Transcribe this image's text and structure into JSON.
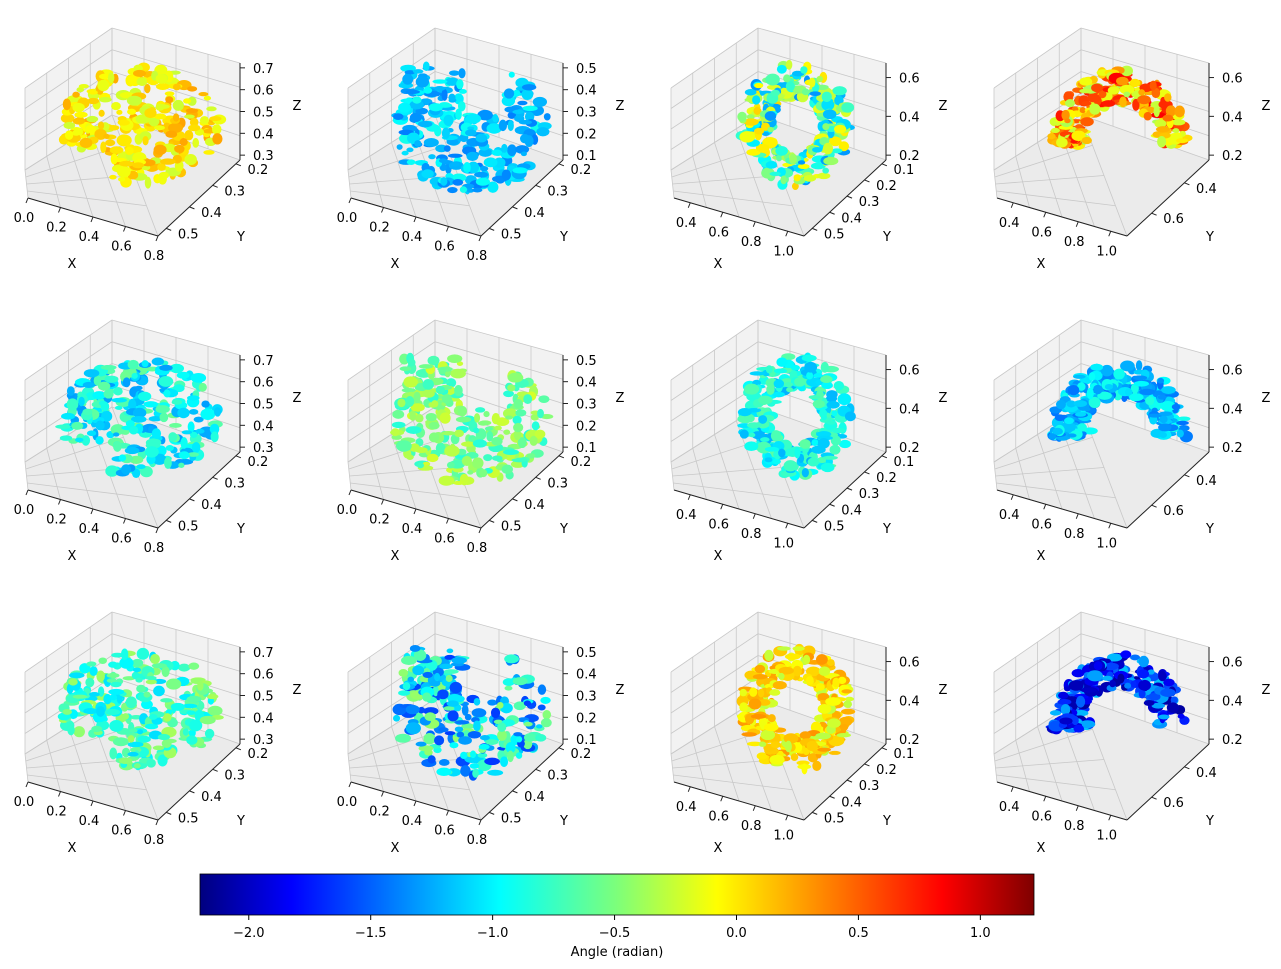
{
  "chart_data": {
    "type": "scatter3d-grid",
    "rows": 3,
    "cols": 4,
    "axis_labels": {
      "x": "X",
      "y": "Y",
      "z": "Z"
    },
    "column_axes": [
      {
        "x_ticks": [
          "0.0",
          "0.2",
          "0.4",
          "0.6",
          "0.8"
        ],
        "y_ticks": [
          "0.2",
          "0.3",
          "0.4",
          "0.5"
        ],
        "z_ticks": [
          "0.3",
          "0.4",
          "0.5",
          "0.6",
          "0.7"
        ]
      },
      {
        "x_ticks": [
          "0.0",
          "0.2",
          "0.4",
          "0.6",
          "0.8"
        ],
        "y_ticks": [
          "0.2",
          "0.3",
          "0.4",
          "0.5"
        ],
        "z_ticks": [
          "0.1",
          "0.2",
          "0.3",
          "0.4",
          "0.5"
        ]
      },
      {
        "x_ticks": [
          "0.4",
          "0.6",
          "0.8",
          "1.0"
        ],
        "y_ticks": [
          "0.1",
          "0.2",
          "0.3",
          "0.4",
          "0.5"
        ],
        "z_ticks": [
          "0.2",
          "0.4",
          "0.6"
        ]
      },
      {
        "x_ticks": [
          "0.4",
          "0.6",
          "0.8",
          "1.0"
        ],
        "y_ticks": [
          "0.4",
          "0.6"
        ],
        "z_ticks": [
          "0.2",
          "0.4",
          "0.6"
        ]
      }
    ],
    "panels": [
      {
        "row": 0,
        "col": 0,
        "shape": "brain",
        "dominant_angle": 0.0,
        "spread": 0.25
      },
      {
        "row": 0,
        "col": 1,
        "shape": "brain-curl",
        "dominant_angle": -1.1,
        "spread": 0.25
      },
      {
        "row": 0,
        "col": 2,
        "shape": "shell-rings",
        "dominant_angle": -0.6,
        "spread": 0.7
      },
      {
        "row": 0,
        "col": 3,
        "shape": "dome",
        "dominant_angle": 0.2,
        "spread": 0.6
      },
      {
        "row": 1,
        "col": 0,
        "shape": "brain",
        "dominant_angle": -0.9,
        "spread": 0.35
      },
      {
        "row": 1,
        "col": 1,
        "shape": "brain-curl",
        "dominant_angle": -0.5,
        "spread": 0.3
      },
      {
        "row": 1,
        "col": 2,
        "shape": "shell-rings",
        "dominant_angle": -0.9,
        "spread": 0.3
      },
      {
        "row": 1,
        "col": 3,
        "shape": "dome",
        "dominant_angle": -1.1,
        "spread": 0.3
      },
      {
        "row": 2,
        "col": 0,
        "shape": "brain",
        "dominant_angle": -0.7,
        "spread": 0.35
      },
      {
        "row": 2,
        "col": 1,
        "shape": "brain-curl",
        "dominant_angle": -1.0,
        "spread": 0.6
      },
      {
        "row": 2,
        "col": 2,
        "shape": "shell-rings",
        "dominant_angle": 0.0,
        "spread": 0.3
      },
      {
        "row": 2,
        "col": 3,
        "shape": "dome",
        "dominant_angle": -1.6,
        "spread": 0.5
      }
    ],
    "colorbar": {
      "label": "Angle (radian)",
      "colormap": "jet",
      "range": [
        -2.2,
        1.22
      ],
      "ticks": [
        -2.0,
        -1.5,
        -1.0,
        -0.5,
        0.0,
        0.5,
        1.0
      ],
      "tick_labels": [
        "−2.0",
        "−1.5",
        "−1.0",
        "−0.5",
        "0.0",
        "0.5",
        "1.0"
      ]
    }
  }
}
